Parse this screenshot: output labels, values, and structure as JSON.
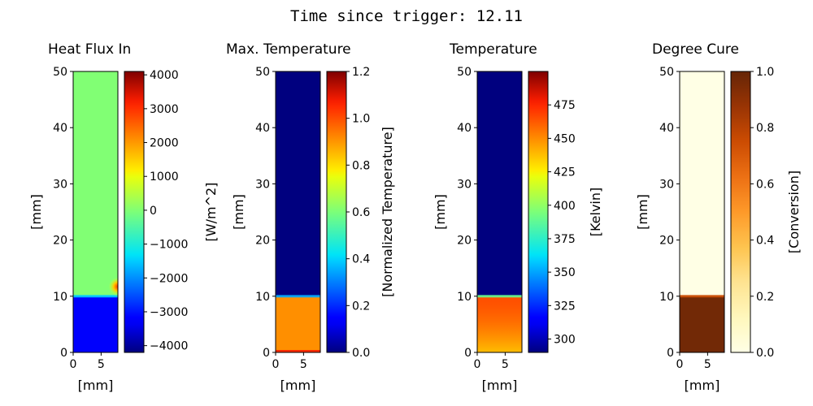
{
  "suptitle": "Time since trigger: 12.11",
  "chart_data": [
    {
      "type": "heatmap",
      "title": "Heat Flux In",
      "xlabel": "[mm]",
      "ylabel": "[mm]",
      "xlim": [
        0,
        8
      ],
      "ylim": [
        0,
        50
      ],
      "xticks": [
        0,
        5
      ],
      "yticks": [
        0,
        10,
        20,
        30,
        40,
        50
      ],
      "colormap": "jet",
      "colorbar": {
        "label": "[W/m^2]",
        "range": [
          -4200,
          4100
        ],
        "ticks": [
          -4000,
          -3000,
          -2000,
          -1000,
          0,
          1000,
          2000,
          3000,
          4000
        ]
      },
      "field": {
        "front_mm": 10,
        "above": 0,
        "below": -3300,
        "hotspot": {
          "x": 8,
          "y": 11.7,
          "value": 3000
        }
      }
    },
    {
      "type": "heatmap",
      "title": "Max. Temperature",
      "xlabel": "[mm]",
      "ylabel": "[mm]",
      "xlim": [
        0,
        8
      ],
      "ylim": [
        0,
        50
      ],
      "xticks": [
        0,
        5
      ],
      "yticks": [
        0,
        10,
        20,
        30,
        40,
        50
      ],
      "colormap": "jet",
      "colorbar": {
        "label": "[Normalized Temperature]",
        "range": [
          0,
          1.2
        ],
        "ticks": [
          "0.0",
          "0.2",
          "0.4",
          "0.6",
          "0.8",
          "1.0",
          "1.2"
        ]
      },
      "field": {
        "front_mm": 10,
        "above": 0.0,
        "below": 0.91,
        "bottom_edge": 1.05
      }
    },
    {
      "type": "heatmap",
      "title": "Temperature",
      "xlabel": "[mm]",
      "ylabel": "[mm]",
      "xlim": [
        0,
        8
      ],
      "ylim": [
        0,
        50
      ],
      "xticks": [
        0,
        5
      ],
      "yticks": [
        0,
        10,
        20,
        30,
        40,
        50
      ],
      "colormap": "jet",
      "colorbar": {
        "label": "[Kelvin]",
        "range": [
          290,
          500
        ],
        "ticks": [
          300,
          325,
          350,
          375,
          400,
          425,
          450,
          475
        ]
      },
      "field": {
        "front_mm": 10,
        "above": 290,
        "front_value": 465,
        "bottom_value": 438
      }
    },
    {
      "type": "heatmap",
      "title": "Degree Cure",
      "xlabel": "[mm]",
      "ylabel": "[mm]",
      "xlim": [
        0,
        8
      ],
      "ylim": [
        0,
        50
      ],
      "xticks": [
        0,
        5
      ],
      "yticks": [
        0,
        10,
        20,
        30,
        40,
        50
      ],
      "colormap": "YlOrBr",
      "colorbar": {
        "label": "[Conversion]",
        "range": [
          0,
          1.0
        ],
        "ticks": [
          "0.0",
          "0.2",
          "0.4",
          "0.6",
          "0.8",
          "1.0"
        ]
      },
      "field": {
        "front_mm": 10,
        "above": 0.0,
        "below": 0.97
      }
    }
  ]
}
